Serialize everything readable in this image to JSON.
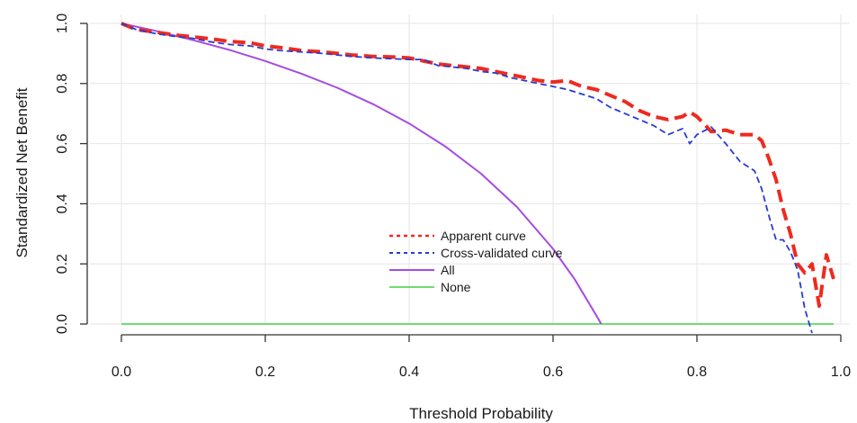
{
  "chart_data": {
    "type": "line",
    "xlabel": "Threshold Probability",
    "ylabel": "Standardized Net Benefit",
    "xlim": [
      0,
      1
    ],
    "ylim": [
      0,
      1
    ],
    "x_ticks": [
      "0.0",
      "0.2",
      "0.4",
      "0.6",
      "0.8",
      "1.0"
    ],
    "y_ticks": [
      "0.0",
      "0.2",
      "0.4",
      "0.6",
      "0.8",
      "1.0"
    ],
    "grid": true,
    "legend_position": "center",
    "series": [
      {
        "name": "Apparent curve",
        "color": "#ee2a1f",
        "style": "dashed",
        "x": [
          0.0,
          0.02,
          0.05,
          0.08,
          0.1,
          0.12,
          0.15,
          0.18,
          0.2,
          0.22,
          0.25,
          0.28,
          0.3,
          0.32,
          0.35,
          0.38,
          0.4,
          0.42,
          0.44,
          0.46,
          0.48,
          0.5,
          0.52,
          0.54,
          0.56,
          0.58,
          0.6,
          0.62,
          0.64,
          0.66,
          0.68,
          0.7,
          0.72,
          0.74,
          0.76,
          0.78,
          0.79,
          0.8,
          0.82,
          0.84,
          0.86,
          0.88,
          0.89,
          0.9,
          0.91,
          0.92,
          0.93,
          0.94,
          0.95,
          0.96,
          0.97,
          0.98,
          0.99
        ],
        "y": [
          1.0,
          0.98,
          0.97,
          0.96,
          0.955,
          0.95,
          0.94,
          0.935,
          0.925,
          0.92,
          0.91,
          0.905,
          0.9,
          0.895,
          0.89,
          0.888,
          0.885,
          0.875,
          0.865,
          0.86,
          0.855,
          0.85,
          0.84,
          0.83,
          0.82,
          0.81,
          0.805,
          0.81,
          0.79,
          0.78,
          0.76,
          0.74,
          0.71,
          0.69,
          0.68,
          0.69,
          0.705,
          0.69,
          0.64,
          0.645,
          0.63,
          0.63,
          0.61,
          0.55,
          0.48,
          0.38,
          0.3,
          0.2,
          0.17,
          0.2,
          0.06,
          0.23,
          0.15
        ]
      },
      {
        "name": "Cross-validated curve",
        "color": "#2a3bd1",
        "style": "dashed",
        "x": [
          0.0,
          0.02,
          0.05,
          0.08,
          0.1,
          0.12,
          0.15,
          0.18,
          0.2,
          0.22,
          0.25,
          0.28,
          0.3,
          0.32,
          0.35,
          0.38,
          0.4,
          0.42,
          0.44,
          0.46,
          0.48,
          0.5,
          0.52,
          0.54,
          0.56,
          0.58,
          0.6,
          0.62,
          0.64,
          0.66,
          0.68,
          0.7,
          0.72,
          0.74,
          0.76,
          0.78,
          0.79,
          0.8,
          0.82,
          0.84,
          0.86,
          0.88,
          0.89,
          0.9,
          0.91,
          0.92,
          0.93,
          0.94,
          0.95,
          0.96
        ],
        "y": [
          1.0,
          0.98,
          0.965,
          0.955,
          0.95,
          0.94,
          0.93,
          0.925,
          0.915,
          0.91,
          0.905,
          0.9,
          0.895,
          0.89,
          0.885,
          0.882,
          0.88,
          0.88,
          0.86,
          0.855,
          0.85,
          0.84,
          0.835,
          0.82,
          0.81,
          0.8,
          0.79,
          0.78,
          0.765,
          0.75,
          0.72,
          0.7,
          0.68,
          0.66,
          0.63,
          0.65,
          0.6,
          0.63,
          0.655,
          0.6,
          0.54,
          0.51,
          0.45,
          0.36,
          0.28,
          0.28,
          0.24,
          0.18,
          0.05,
          -0.03
        ]
      },
      {
        "name": "All",
        "color": "#a64ce0",
        "style": "solid",
        "x": [
          0.0,
          0.05,
          0.1,
          0.15,
          0.2,
          0.25,
          0.3,
          0.35,
          0.4,
          0.45,
          0.5,
          0.55,
          0.6,
          0.63,
          0.66,
          0.667
        ],
        "y": [
          1.0,
          0.974,
          0.944,
          0.912,
          0.875,
          0.833,
          0.786,
          0.731,
          0.667,
          0.591,
          0.5,
          0.389,
          0.25,
          0.149,
          0.029,
          0.0
        ]
      },
      {
        "name": "None",
        "color": "#40d040",
        "style": "solid",
        "x": [
          0.0,
          0.99
        ],
        "y": [
          0.0,
          0.0
        ]
      }
    ]
  }
}
